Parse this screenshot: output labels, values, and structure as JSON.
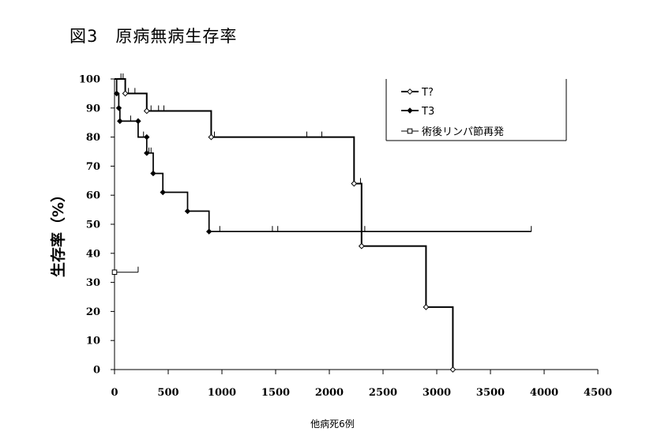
{
  "title": "図3　原病無病生存率",
  "footnote": "他病死6例",
  "chart_data": {
    "type": "line",
    "title": "図3　原病無病生存率",
    "xlabel": "",
    "ylabel": "生存率（%）",
    "xlim": [
      0,
      4500
    ],
    "ylim": [
      0,
      100
    ],
    "x_ticks": [
      "0",
      "500",
      "1000",
      "1500",
      "2000",
      "2500",
      "3000",
      "3500",
      "4000",
      "4500"
    ],
    "y_ticks": [
      "0",
      "10",
      "20",
      "30",
      "40",
      "50",
      "60",
      "70",
      "80",
      "90",
      "100"
    ],
    "grid": false,
    "legend_position": "top-right",
    "series": [
      {
        "name": "T?",
        "color": "#000000",
        "marker": "open-diamond",
        "stroke_width": 2,
        "steps": [
          [
            0,
            100
          ],
          [
            100,
            100
          ],
          [
            100,
            95
          ],
          [
            300,
            95
          ],
          [
            300,
            89
          ],
          [
            900,
            89
          ],
          [
            900,
            80
          ],
          [
            2230,
            80
          ],
          [
            2230,
            64
          ],
          [
            2300,
            64
          ],
          [
            2300,
            42.5
          ],
          [
            2900,
            42.5
          ],
          [
            2900,
            21.5
          ],
          [
            3150,
            21.5
          ],
          [
            3150,
            0
          ]
        ],
        "events": [
          [
            100,
            95
          ],
          [
            300,
            89
          ],
          [
            900,
            80
          ],
          [
            2230,
            64
          ],
          [
            2300,
            42.5
          ],
          [
            2900,
            21.5
          ],
          [
            3150,
            0
          ]
        ],
        "censored": [
          [
            60,
            100
          ],
          [
            80,
            100
          ],
          [
            130,
            95
          ],
          [
            190,
            95
          ],
          [
            340,
            89
          ],
          [
            410,
            89
          ],
          [
            460,
            89
          ],
          [
            930,
            80
          ],
          [
            1790,
            80
          ],
          [
            1930,
            80
          ],
          [
            2290,
            64
          ]
        ]
      },
      {
        "name": "T3",
        "color": "#000000",
        "marker": "filled-diamond",
        "stroke_width": 1.7,
        "steps": [
          [
            0,
            100
          ],
          [
            20,
            100
          ],
          [
            20,
            95
          ],
          [
            40,
            95
          ],
          [
            40,
            90
          ],
          [
            50,
            90
          ],
          [
            50,
            85.5
          ],
          [
            220,
            85.5
          ],
          [
            220,
            80
          ],
          [
            300,
            80
          ],
          [
            300,
            74.5
          ],
          [
            360,
            74.5
          ],
          [
            360,
            67.5
          ],
          [
            450,
            67.5
          ],
          [
            450,
            61
          ],
          [
            680,
            61
          ],
          [
            680,
            54.5
          ],
          [
            880,
            54.5
          ],
          [
            880,
            47.5
          ],
          [
            3880,
            47.5
          ]
        ],
        "events": [
          [
            20,
            95
          ],
          [
            40,
            90
          ],
          [
            50,
            85.5
          ],
          [
            220,
            85.5
          ],
          [
            300,
            80
          ],
          [
            300,
            74.5
          ],
          [
            360,
            67.5
          ],
          [
            450,
            61
          ],
          [
            680,
            54.5
          ],
          [
            880,
            47.5
          ]
        ],
        "censored": [
          [
            150,
            85.5
          ],
          [
            270,
            80
          ],
          [
            320,
            74.5
          ],
          [
            340,
            74.5
          ],
          [
            980,
            47.5
          ],
          [
            1470,
            47.5
          ],
          [
            1520,
            47.5
          ],
          [
            2330,
            47.5
          ],
          [
            3880,
            47.5
          ]
        ]
      },
      {
        "name": "術後リンパ節再発",
        "color": "#000000",
        "marker": "open-square",
        "stroke_width": 1,
        "steps": [
          [
            0,
            33.5
          ],
          [
            220,
            33.5
          ]
        ],
        "events": [
          [
            0,
            33.5
          ]
        ],
        "censored": [
          [
            220,
            33.5
          ]
        ]
      }
    ]
  }
}
